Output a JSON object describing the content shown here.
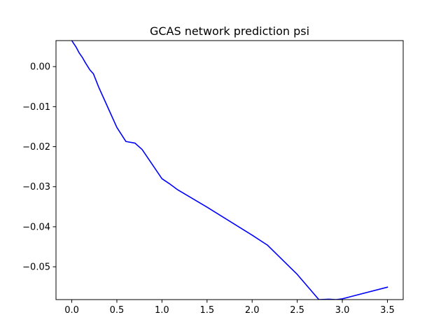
{
  "chart_data": {
    "type": "line",
    "title": "GCAS network prediction psi",
    "xlabel": "",
    "ylabel": "",
    "xlim": [
      -0.175,
      3.675
    ],
    "ylim": [
      -0.0582,
      0.0065
    ],
    "grid": false,
    "legend": "none",
    "x_ticks": [
      0.0,
      0.5,
      1.0,
      1.5,
      2.0,
      2.5,
      3.0,
      3.5
    ],
    "x_tick_labels": [
      "0.0",
      "0.5",
      "1.0",
      "1.5",
      "2.0",
      "2.5",
      "3.0",
      "3.5"
    ],
    "y_ticks": [
      0.0,
      -0.01,
      -0.02,
      -0.03,
      -0.04,
      -0.05
    ],
    "y_tick_labels": [
      "0.00",
      "−0.01",
      "−0.02",
      "−0.03",
      "−0.04",
      "−0.05"
    ],
    "series": [
      {
        "color": "#0000ff",
        "x": [
          0.0,
          0.05,
          0.08,
          0.12,
          0.15,
          0.2,
          0.24,
          0.3,
          0.4,
          0.5,
          0.6,
          0.7,
          0.78,
          1.0,
          1.08,
          1.17,
          1.5,
          2.0,
          2.17,
          2.5,
          2.74,
          2.85,
          2.93,
          3.0,
          3.5
        ],
        "y": [
          0.0065,
          0.0048,
          0.0035,
          0.0022,
          0.001,
          -0.0008,
          -0.0018,
          -0.0052,
          -0.0102,
          -0.0152,
          -0.0187,
          -0.0191,
          -0.0207,
          -0.028,
          -0.0292,
          -0.0307,
          -0.0351,
          -0.0421,
          -0.0446,
          -0.0519,
          -0.0582,
          -0.0581,
          -0.0582,
          -0.058,
          -0.0551
        ]
      }
    ]
  }
}
